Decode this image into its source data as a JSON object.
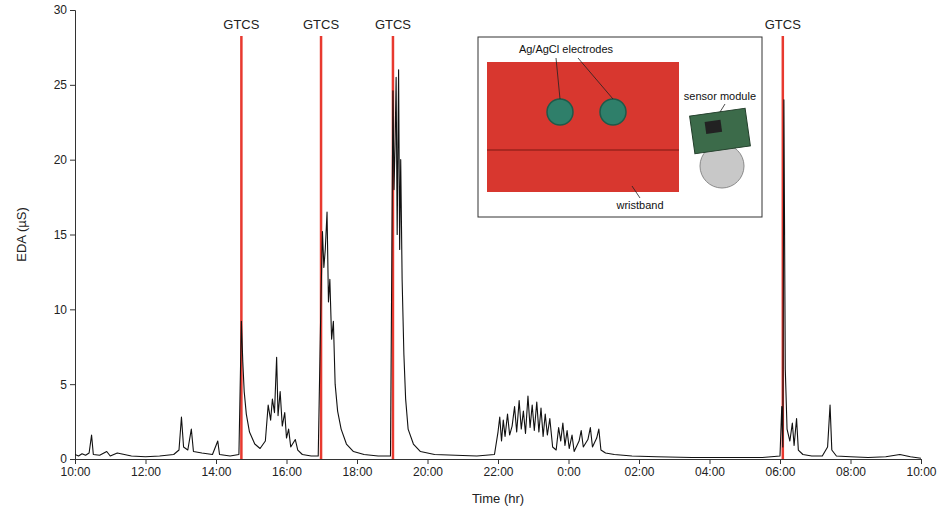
{
  "chart_data": {
    "type": "line",
    "xlabel": "Time (hr)",
    "ylabel": "EDA (µS)",
    "color": "#111111",
    "x": [
      0.0,
      0.1,
      0.2,
      0.3,
      0.4,
      0.47,
      0.52,
      0.7,
      0.9,
      1.0,
      1.2,
      1.4,
      1.6,
      2.0,
      2.4,
      2.8,
      2.95,
      3.02,
      3.08,
      3.2,
      3.3,
      3.36,
      3.6,
      3.9,
      4.05,
      4.1,
      4.4,
      4.65,
      4.72,
      4.76,
      4.8,
      4.86,
      4.95,
      5.1,
      5.25,
      5.4,
      5.48,
      5.55,
      5.6,
      5.66,
      5.72,
      5.76,
      5.82,
      5.88,
      5.95,
      6.0,
      6.06,
      6.12,
      6.25,
      6.32,
      6.45,
      6.7,
      6.9,
      6.98,
      7.02,
      7.06,
      7.1,
      7.15,
      7.19,
      7.23,
      7.28,
      7.33,
      7.38,
      7.45,
      7.55,
      7.7,
      7.9,
      8.2,
      8.6,
      8.95,
      9.02,
      9.05,
      9.08,
      9.11,
      9.14,
      9.18,
      9.21,
      9.24,
      9.28,
      9.33,
      9.38,
      9.45,
      9.6,
      9.8,
      10.2,
      10.8,
      11.4,
      11.9,
      12.0,
      12.05,
      12.1,
      12.15,
      12.2,
      12.27,
      12.33,
      12.4,
      12.47,
      12.53,
      12.6,
      12.66,
      12.72,
      12.78,
      12.85,
      12.91,
      12.97,
      13.03,
      13.1,
      13.16,
      13.22,
      13.28,
      13.34,
      13.4,
      13.47,
      13.55,
      13.65,
      13.72,
      13.78,
      13.84,
      13.9,
      13.96,
      14.02,
      14.1,
      14.16,
      14.3,
      14.36,
      14.42,
      14.55,
      14.62,
      14.68,
      14.8,
      14.86,
      14.92,
      15.05,
      15.3,
      15.8,
      16.5,
      17.5,
      18.5,
      19.5,
      20.0,
      20.05,
      20.08,
      20.11,
      20.15,
      20.2,
      20.28,
      20.35,
      20.4,
      20.47,
      20.52,
      20.65,
      20.9,
      21.2,
      21.35,
      21.42,
      21.47,
      21.6,
      22.0,
      22.5,
      23.0,
      23.4,
      23.7,
      24.0
    ],
    "values": [
      0.3,
      0.2,
      0.35,
      0.25,
      0.4,
      1.6,
      0.3,
      0.25,
      0.5,
      0.2,
      0.4,
      0.3,
      0.2,
      0.15,
      0.2,
      0.3,
      0.6,
      2.8,
      0.8,
      0.6,
      2.0,
      0.5,
      0.4,
      0.3,
      1.2,
      0.3,
      0.2,
      0.3,
      9.2,
      6.5,
      4.5,
      3.0,
      1.8,
      1.0,
      0.7,
      1.2,
      3.6,
      2.6,
      4.0,
      3.1,
      6.8,
      2.9,
      4.5,
      2.2,
      3.1,
      1.4,
      2.0,
      0.8,
      1.3,
      0.6,
      0.3,
      0.2,
      0.2,
      11.0,
      15.2,
      12.8,
      14.0,
      16.5,
      10.5,
      12.0,
      8.0,
      9.2,
      5.0,
      3.2,
      2.0,
      1.0,
      0.5,
      0.3,
      0.2,
      0.2,
      24.6,
      18.0,
      21.0,
      25.5,
      15.0,
      26.0,
      14.0,
      20.0,
      12.0,
      7.0,
      4.0,
      2.0,
      1.0,
      0.5,
      0.3,
      0.25,
      0.2,
      0.3,
      1.8,
      2.8,
      1.2,
      2.6,
      1.5,
      3.0,
      1.6,
      2.2,
      3.5,
      1.8,
      3.9,
      2.0,
      3.2,
      1.7,
      4.2,
      2.1,
      3.6,
      1.9,
      3.8,
      1.8,
      3.4,
      1.5,
      3.0,
      1.6,
      2.7,
      0.8,
      0.6,
      2.1,
      1.2,
      2.4,
      0.9,
      1.9,
      0.7,
      1.6,
      0.5,
      1.2,
      1.9,
      0.8,
      1.3,
      2.1,
      0.8,
      1.4,
      2.0,
      0.6,
      0.4,
      0.3,
      0.2,
      0.15,
      0.1,
      0.1,
      0.1,
      0.2,
      3.5,
      0.8,
      24.0,
      6.0,
      2.0,
      1.2,
      2.4,
      0.9,
      2.7,
      0.6,
      0.3,
      0.2,
      0.2,
      0.8,
      3.6,
      0.6,
      0.2,
      0.15,
      0.1,
      0.15,
      0.3,
      0.15,
      0.05
    ],
    "xlim": [
      0,
      24
    ],
    "ylim": [
      0,
      30
    ],
    "xticks": [
      {
        "value": 0,
        "label": "10:00"
      },
      {
        "value": 2,
        "label": "12:00"
      },
      {
        "value": 4,
        "label": "14:00"
      },
      {
        "value": 6,
        "label": "16:00"
      },
      {
        "value": 8,
        "label": "18:00"
      },
      {
        "value": 10,
        "label": "20:00"
      },
      {
        "value": 12,
        "label": "22:00"
      },
      {
        "value": 14,
        "label": "0:00"
      },
      {
        "value": 16,
        "label": "02:00"
      },
      {
        "value": 18,
        "label": "04:00"
      },
      {
        "value": 20,
        "label": "06:00"
      },
      {
        "value": 22,
        "label": "08:00"
      },
      {
        "value": 24,
        "label": "10:00"
      }
    ],
    "yticks": [
      0,
      5,
      10,
      15,
      20,
      25,
      30
    ],
    "events": [
      {
        "x": 4.72,
        "label": "GTCS",
        "color": "#e8392f"
      },
      {
        "x": 6.98,
        "label": "GTCS",
        "color": "#e8392f"
      },
      {
        "x": 9.02,
        "label": "GTCS",
        "color": "#e8392f"
      },
      {
        "x": 20.08,
        "label": "GTCS",
        "color": "#e8392f"
      }
    ],
    "annotations": [
      "Ag/AgCl electrodes",
      "sensor module",
      "wristband"
    ]
  }
}
